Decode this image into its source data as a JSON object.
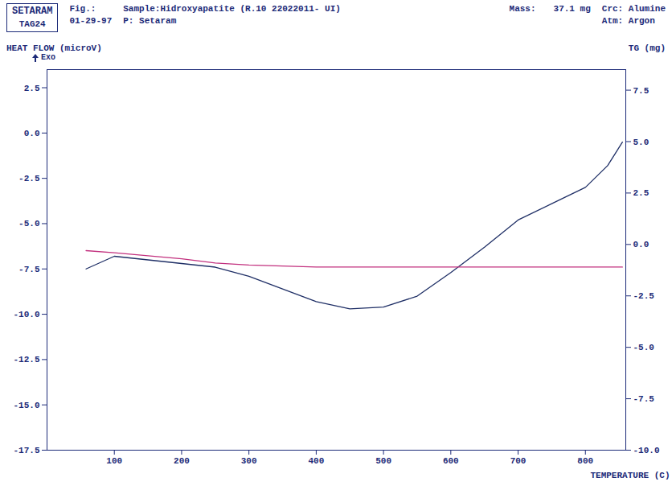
{
  "chart_data": {
    "type": "line",
    "header": {
      "logo": "SETARAM",
      "instrument": "TAG24",
      "fig": "Fig.:",
      "date": "01-29-97",
      "sample": "Sample:Hidroxyapatite (R.10 22022011- UI)",
      "p": "P: Setaram",
      "mass_label": "Mass:",
      "mass": "37.1 mg",
      "crucible": "Crc: Alumine",
      "atmosphere": "Atm: Argon"
    },
    "y_label": "HEAT FLOW (microV)",
    "exo_label": "Exo",
    "y2_label": "TG (mg)",
    "x_label": "TEMPERATURE (C)",
    "x": [
      58,
      100,
      150,
      200,
      250,
      300,
      350,
      400,
      450,
      500,
      550,
      600,
      650,
      700,
      750,
      800,
      833,
      855
    ],
    "series": [
      {
        "color": "#1f2f66",
        "axis": "y",
        "values": [
          -7.5,
          -6.8,
          -7.0,
          -7.2,
          -7.4,
          -7.9,
          -8.6,
          -9.3,
          -9.7,
          -9.6,
          -9.0,
          -7.7,
          -6.3,
          -4.8,
          -3.9,
          -3.0,
          -1.8,
          -0.5
        ]
      },
      {
        "color": "#c2307e",
        "axis": "y2",
        "values": [
          -0.3,
          -0.4,
          -0.55,
          -0.7,
          -0.9,
          -1.0,
          -1.05,
          -1.1,
          -1.1,
          -1.1,
          -1.1,
          -1.1,
          -1.1,
          -1.1,
          -1.1,
          -1.1,
          -1.1,
          -1.1
        ]
      }
    ],
    "xlim": [
      0,
      860
    ],
    "xticks": [
      100,
      200,
      300,
      400,
      500,
      600,
      700,
      800
    ],
    "ylim": [
      -17.5,
      3.5
    ],
    "yticks": [
      2.5,
      {
        "value": 0,
        "label": "0.0"
      },
      -2.5,
      {
        "value": -5,
        "label": "-5.0"
      },
      -7.5,
      {
        "value": -10,
        "label": "-10.0"
      },
      -12.5,
      {
        "value": -15,
        "label": "-15.0"
      },
      -17.5
    ],
    "y2lim": [
      -10,
      8.5
    ],
    "y2ticks": [
      7.5,
      {
        "value": 5,
        "label": "5.0"
      },
      2.5,
      {
        "value": 0,
        "label": "0.0"
      },
      -2.5,
      {
        "value": -5,
        "label": "-5.0"
      },
      -7.5,
      {
        "value": -10,
        "label": "-10.0"
      }
    ],
    "grid": false
  }
}
